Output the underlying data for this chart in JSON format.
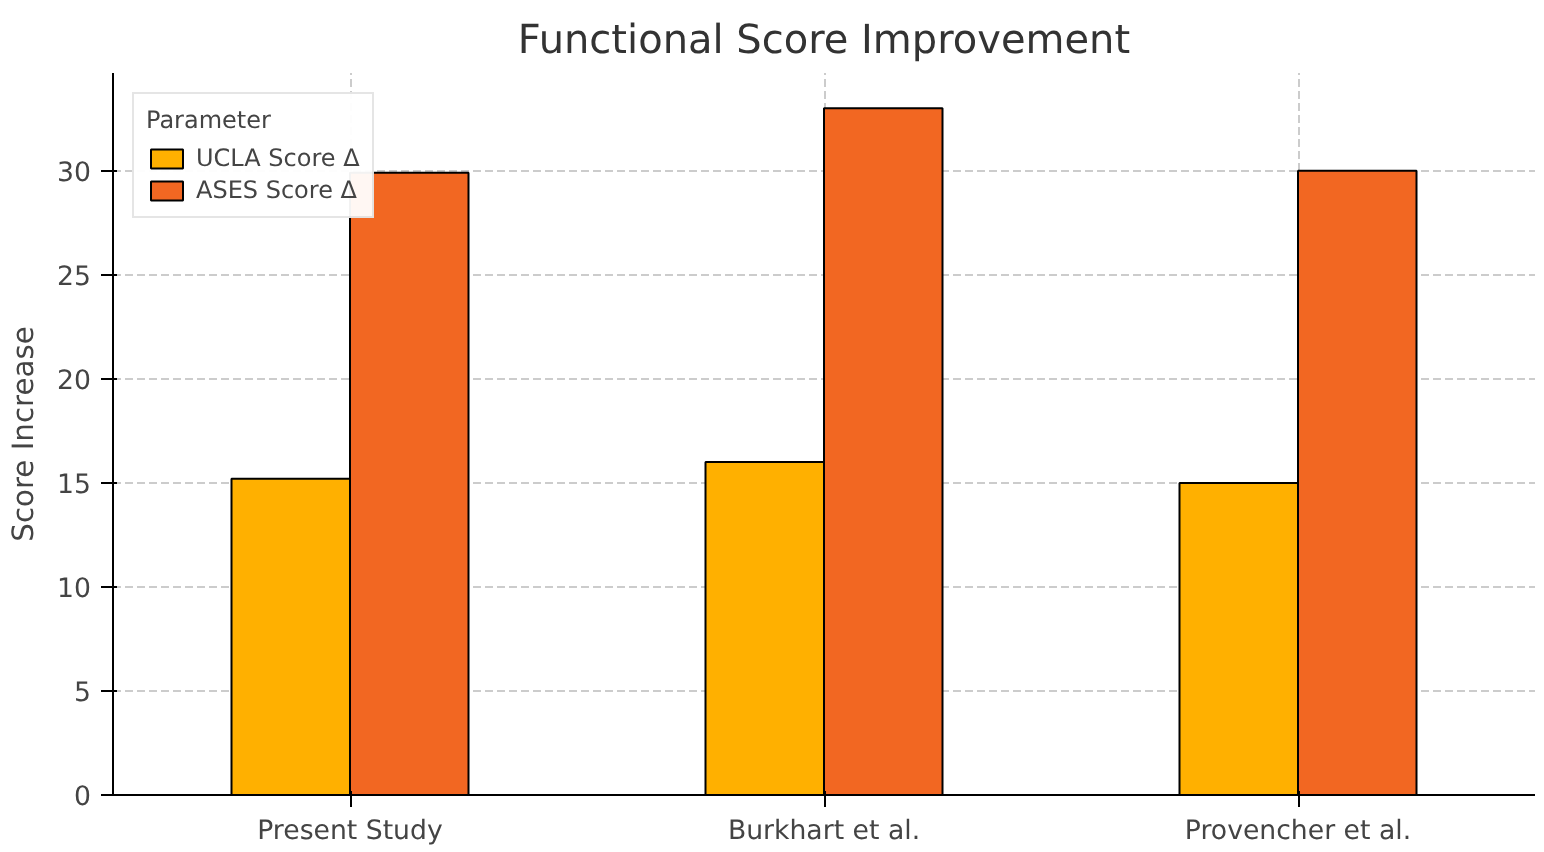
{
  "chart_data": {
    "type": "bar",
    "title": "Functional Score Improvement",
    "ylabel": "Score Increase",
    "legend_title": "Parameter",
    "categories": [
      "Present Study",
      "Burkhart et al.",
      "Provencher et al."
    ],
    "series": [
      {
        "name": "UCLA Score Δ",
        "color": "#ffb000",
        "values": [
          15.2,
          16,
          15
        ]
      },
      {
        "name": "ASES Score Δ",
        "color": "#f26722",
        "values": [
          29.9,
          33,
          30
        ]
      }
    ],
    "ylim": [
      0,
      34.7
    ],
    "yticks": [
      0,
      5,
      10,
      15,
      20,
      25,
      30
    ],
    "grid": true,
    "legend": "top left"
  }
}
